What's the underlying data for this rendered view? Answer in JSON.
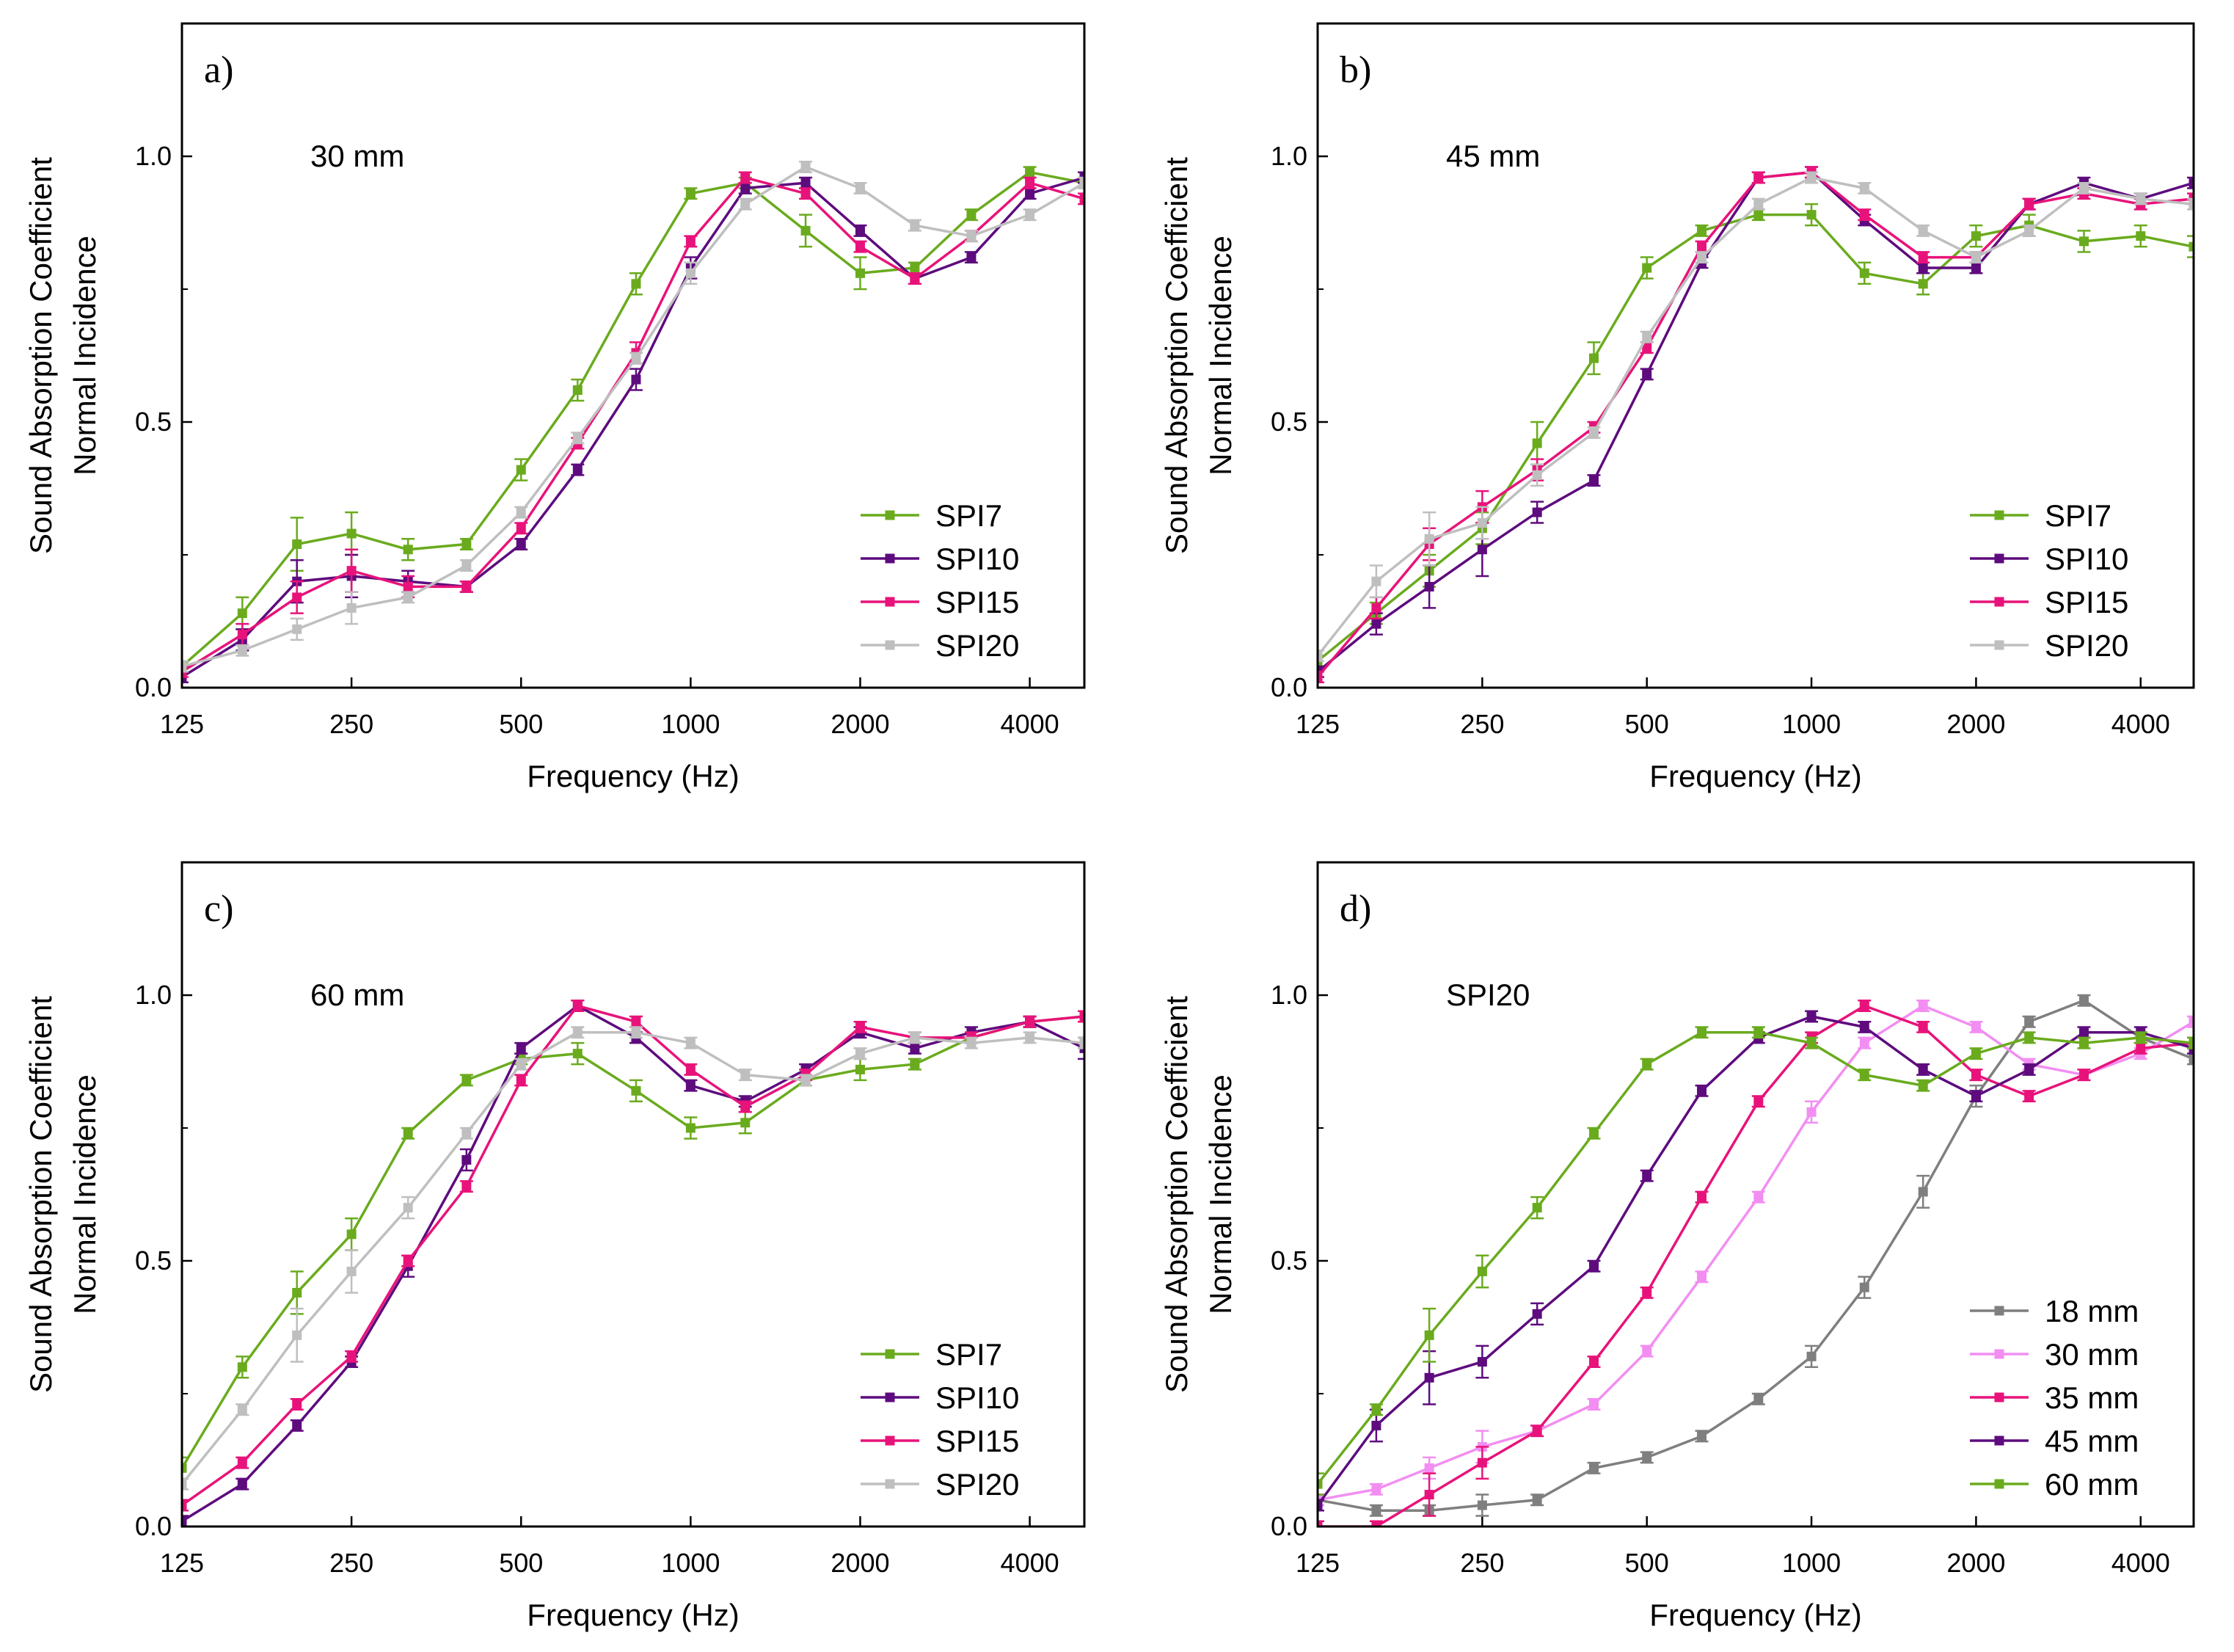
{
  "chart_data": [
    {
      "type": "line",
      "panel_label": "a)",
      "annotation": "30 mm",
      "xlabel": "Frequency (Hz)",
      "ylabel_line1": "Sound Absorption Coefficient",
      "ylabel_line2": "Normal Incidence",
      "xscale": "log2",
      "xlim": [
        125,
        5000
      ],
      "ylim": [
        0,
        1.25
      ],
      "xticks": [
        125,
        250,
        500,
        1000,
        2000,
        4000
      ],
      "xtick_labels": [
        "125",
        "250",
        "500",
        "1000",
        "2000",
        "4000"
      ],
      "yticks": [
        0,
        0.5,
        1.0
      ],
      "ytick_labels": [
        "0.0",
        "0.5",
        "1.0"
      ],
      "legend_position": "bottom-right",
      "x": [
        125,
        160,
        200,
        250,
        315,
        400,
        500,
        630,
        800,
        1000,
        1250,
        1600,
        2000,
        2500,
        3150,
        4000,
        5000
      ],
      "series": [
        {
          "name": "SPI7",
          "color": "#6aab1e",
          "values": [
            0.04,
            0.14,
            0.27,
            0.29,
            0.26,
            0.27,
            0.41,
            0.56,
            0.76,
            0.93,
            0.95,
            0.86,
            0.78,
            0.79,
            0.89,
            0.97,
            0.95
          ],
          "errors": [
            0.01,
            0.03,
            0.05,
            0.04,
            0.02,
            0.01,
            0.02,
            0.02,
            0.02,
            0.01,
            0.01,
            0.03,
            0.03,
            0.01,
            0.01,
            0.01,
            0.01
          ]
        },
        {
          "name": "SPI10",
          "color": "#5e0b7e",
          "values": [
            0.02,
            0.09,
            0.2,
            0.21,
            0.2,
            0.19,
            0.27,
            0.41,
            0.58,
            0.79,
            0.94,
            0.95,
            0.86,
            0.77,
            0.81,
            0.93,
            0.96
          ],
          "errors": [
            0.01,
            0.02,
            0.04,
            0.04,
            0.02,
            0.01,
            0.01,
            0.01,
            0.02,
            0.02,
            0.01,
            0.01,
            0.01,
            0.01,
            0.01,
            0.01,
            0.01
          ]
        },
        {
          "name": "SPI15",
          "color": "#e8137a",
          "values": [
            0.03,
            0.1,
            0.17,
            0.22,
            0.19,
            0.19,
            0.3,
            0.46,
            0.63,
            0.84,
            0.96,
            0.93,
            0.83,
            0.77,
            0.85,
            0.95,
            0.92
          ],
          "errors": [
            0.01,
            0.02,
            0.03,
            0.04,
            0.02,
            0.01,
            0.01,
            0.01,
            0.02,
            0.01,
            0.01,
            0.01,
            0.01,
            0.01,
            0.01,
            0.01,
            0.01
          ]
        },
        {
          "name": "SPI20",
          "color": "#bfbfbf",
          "values": [
            0.04,
            0.07,
            0.11,
            0.15,
            0.17,
            0.23,
            0.33,
            0.47,
            0.62,
            0.78,
            0.91,
            0.98,
            0.94,
            0.87,
            0.85,
            0.89,
            0.95
          ],
          "errors": [
            0.01,
            0.01,
            0.02,
            0.03,
            0.01,
            0.01,
            0.01,
            0.01,
            0.01,
            0.02,
            0.01,
            0.01,
            0.01,
            0.01,
            0.01,
            0.01,
            0.01
          ]
        }
      ]
    },
    {
      "type": "line",
      "panel_label": "b)",
      "annotation": "45 mm",
      "xlabel": "Frequency (Hz)",
      "ylabel_line1": "Sound Absorption Coefficient",
      "ylabel_line2": "Normal Incidence",
      "xscale": "log2",
      "xlim": [
        125,
        5000
      ],
      "ylim": [
        0,
        1.25
      ],
      "xticks": [
        125,
        250,
        500,
        1000,
        2000,
        4000
      ],
      "xtick_labels": [
        "125",
        "250",
        "500",
        "1000",
        "2000",
        "4000"
      ],
      "yticks": [
        0,
        0.5,
        1.0
      ],
      "ytick_labels": [
        "0.0",
        "0.5",
        "1.0"
      ],
      "legend_position": "bottom-right",
      "x": [
        125,
        160,
        200,
        250,
        315,
        400,
        500,
        630,
        800,
        1000,
        1250,
        1600,
        2000,
        2500,
        3150,
        4000,
        5000
      ],
      "series": [
        {
          "name": "SPI7",
          "color": "#6aab1e",
          "values": [
            0.05,
            0.14,
            0.22,
            0.3,
            0.46,
            0.62,
            0.79,
            0.86,
            0.89,
            0.89,
            0.78,
            0.76,
            0.85,
            0.87,
            0.84,
            0.85,
            0.83
          ],
          "errors": [
            0.01,
            0.02,
            0.03,
            0.03,
            0.04,
            0.03,
            0.02,
            0.01,
            0.01,
            0.02,
            0.02,
            0.02,
            0.02,
            0.02,
            0.02,
            0.02,
            0.02
          ]
        },
        {
          "name": "SPI10",
          "color": "#5e0b7e",
          "values": [
            0.03,
            0.12,
            0.19,
            0.26,
            0.33,
            0.39,
            0.59,
            0.8,
            0.96,
            0.97,
            0.88,
            0.79,
            0.79,
            0.91,
            0.95,
            0.92,
            0.95
          ],
          "errors": [
            0.01,
            0.02,
            0.04,
            0.05,
            0.02,
            0.01,
            0.01,
            0.01,
            0.01,
            0.01,
            0.01,
            0.01,
            0.01,
            0.01,
            0.01,
            0.01,
            0.01
          ]
        },
        {
          "name": "SPI15",
          "color": "#e8137a",
          "values": [
            0.02,
            0.15,
            0.27,
            0.34,
            0.41,
            0.49,
            0.64,
            0.83,
            0.96,
            0.97,
            0.89,
            0.81,
            0.81,
            0.91,
            0.93,
            0.91,
            0.92
          ],
          "errors": [
            0.01,
            0.02,
            0.03,
            0.03,
            0.02,
            0.01,
            0.01,
            0.01,
            0.01,
            0.01,
            0.01,
            0.01,
            0.01,
            0.01,
            0.01,
            0.01,
            0.01
          ]
        },
        {
          "name": "SPI20",
          "color": "#bfbfbf",
          "values": [
            0.06,
            0.2,
            0.28,
            0.31,
            0.4,
            0.48,
            0.66,
            0.81,
            0.91,
            0.96,
            0.94,
            0.86,
            0.81,
            0.86,
            0.94,
            0.92,
            0.91
          ],
          "errors": [
            0.01,
            0.03,
            0.05,
            0.03,
            0.02,
            0.01,
            0.01,
            0.01,
            0.01,
            0.01,
            0.01,
            0.01,
            0.01,
            0.01,
            0.01,
            0.01,
            0.01
          ]
        }
      ]
    },
    {
      "type": "line",
      "panel_label": "c)",
      "annotation": "60 mm",
      "xlabel": "Frequency (Hz)",
      "ylabel_line1": "Sound Absorption Coefficient",
      "ylabel_line2": "Normal Incidence",
      "xscale": "log2",
      "xlim": [
        125,
        5000
      ],
      "ylim": [
        0,
        1.25
      ],
      "xticks": [
        125,
        250,
        500,
        1000,
        2000,
        4000
      ],
      "xtick_labels": [
        "125",
        "250",
        "500",
        "1000",
        "2000",
        "4000"
      ],
      "yticks": [
        0,
        0.5,
        1.0
      ],
      "ytick_labels": [
        "0.0",
        "0.5",
        "1.0"
      ],
      "legend_position": "bottom-right",
      "x": [
        125,
        160,
        200,
        250,
        315,
        400,
        500,
        630,
        800,
        1000,
        1250,
        1600,
        2000,
        2500,
        3150,
        4000,
        5000
      ],
      "series": [
        {
          "name": "SPI7",
          "color": "#6aab1e",
          "values": [
            0.11,
            0.3,
            0.44,
            0.55,
            0.74,
            0.84,
            0.88,
            0.89,
            0.82,
            0.75,
            0.76,
            0.84,
            0.86,
            0.87,
            0.92,
            0.95,
            0.96
          ],
          "errors": [
            0.02,
            0.02,
            0.04,
            0.03,
            0.01,
            0.01,
            0.01,
            0.02,
            0.02,
            0.02,
            0.02,
            0.01,
            0.02,
            0.01,
            0.01,
            0.01,
            0.01
          ]
        },
        {
          "name": "SPI10",
          "color": "#5e0b7e",
          "values": [
            0.01,
            0.08,
            0.19,
            0.31,
            0.49,
            0.69,
            0.9,
            0.98,
            0.92,
            0.83,
            0.8,
            0.86,
            0.93,
            0.9,
            0.93,
            0.95,
            0.9
          ],
          "errors": [
            0.01,
            0.01,
            0.01,
            0.01,
            0.02,
            0.02,
            0.01,
            0.01,
            0.01,
            0.01,
            0.01,
            0.01,
            0.01,
            0.01,
            0.01,
            0.01,
            0.02
          ]
        },
        {
          "name": "SPI15",
          "color": "#e8137a",
          "values": [
            0.04,
            0.12,
            0.23,
            0.32,
            0.5,
            0.64,
            0.84,
            0.98,
            0.95,
            0.86,
            0.79,
            0.85,
            0.94,
            0.92,
            0.92,
            0.95,
            0.96
          ],
          "errors": [
            0.01,
            0.01,
            0.01,
            0.01,
            0.01,
            0.01,
            0.01,
            0.01,
            0.01,
            0.01,
            0.01,
            0.01,
            0.01,
            0.01,
            0.01,
            0.01,
            0.01
          ]
        },
        {
          "name": "SPI20",
          "color": "#bfbfbf",
          "values": [
            0.08,
            0.22,
            0.36,
            0.48,
            0.6,
            0.74,
            0.87,
            0.93,
            0.93,
            0.91,
            0.85,
            0.84,
            0.89,
            0.92,
            0.91,
            0.92,
            0.91
          ],
          "errors": [
            0.01,
            0.01,
            0.05,
            0.04,
            0.02,
            0.01,
            0.01,
            0.01,
            0.01,
            0.01,
            0.01,
            0.01,
            0.01,
            0.01,
            0.01,
            0.01,
            0.01
          ]
        }
      ]
    },
    {
      "type": "line",
      "panel_label": "d)",
      "annotation": "SPI20",
      "xlabel": "Frequency (Hz)",
      "ylabel_line1": "Sound Absorption Coefficient",
      "ylabel_line2": "Normal Incidence",
      "xscale": "log2",
      "xlim": [
        125,
        5000
      ],
      "ylim": [
        0,
        1.25
      ],
      "xticks": [
        125,
        250,
        500,
        1000,
        2000,
        4000
      ],
      "xtick_labels": [
        "125",
        "250",
        "500",
        "1000",
        "2000",
        "4000"
      ],
      "yticks": [
        0,
        0.5,
        1.0
      ],
      "ytick_labels": [
        "0.0",
        "0.5",
        "1.0"
      ],
      "legend_position": "bottom-right",
      "x": [
        125,
        160,
        200,
        250,
        315,
        400,
        500,
        630,
        800,
        1000,
        1250,
        1600,
        2000,
        2500,
        3150,
        4000,
        5000
      ],
      "series": [
        {
          "name": "18 mm",
          "color": "#7f7f7f",
          "values": [
            0.05,
            0.03,
            0.03,
            0.04,
            0.05,
            0.11,
            0.13,
            0.17,
            0.24,
            0.32,
            0.45,
            0.63,
            0.81,
            0.95,
            0.99,
            0.92,
            0.88
          ],
          "errors": [
            0.01,
            0.01,
            0.01,
            0.02,
            0.01,
            0.01,
            0.01,
            0.01,
            0.01,
            0.02,
            0.02,
            0.03,
            0.02,
            0.01,
            0.01,
            0.01,
            0.01
          ]
        },
        {
          "name": "30 mm",
          "color": "#f28ef2",
          "values": [
            0.05,
            0.07,
            0.11,
            0.15,
            0.18,
            0.23,
            0.33,
            0.47,
            0.62,
            0.78,
            0.91,
            0.98,
            0.94,
            0.87,
            0.85,
            0.89,
            0.95
          ],
          "errors": [
            0.01,
            0.01,
            0.02,
            0.03,
            0.01,
            0.01,
            0.01,
            0.01,
            0.01,
            0.02,
            0.01,
            0.01,
            0.01,
            0.01,
            0.01,
            0.01,
            0.01
          ]
        },
        {
          "name": "35 mm",
          "color": "#e8137a",
          "values": [
            0.0,
            0.0,
            0.06,
            0.12,
            0.18,
            0.31,
            0.44,
            0.62,
            0.8,
            0.92,
            0.98,
            0.94,
            0.85,
            0.81,
            0.85,
            0.9,
            0.91
          ],
          "errors": [
            0.01,
            0.01,
            0.04,
            0.03,
            0.01,
            0.01,
            0.01,
            0.01,
            0.01,
            0.01,
            0.01,
            0.01,
            0.01,
            0.01,
            0.01,
            0.01,
            0.01
          ]
        },
        {
          "name": "45 mm",
          "color": "#5e0b7e",
          "values": [
            0.04,
            0.19,
            0.28,
            0.31,
            0.4,
            0.49,
            0.66,
            0.82,
            0.92,
            0.96,
            0.94,
            0.86,
            0.81,
            0.86,
            0.93,
            0.93,
            0.9
          ],
          "errors": [
            0.01,
            0.03,
            0.05,
            0.03,
            0.02,
            0.01,
            0.01,
            0.01,
            0.01,
            0.01,
            0.01,
            0.01,
            0.01,
            0.01,
            0.01,
            0.01,
            0.01
          ]
        },
        {
          "name": "60 mm",
          "color": "#6aab1e",
          "values": [
            0.08,
            0.22,
            0.36,
            0.48,
            0.6,
            0.74,
            0.87,
            0.93,
            0.93,
            0.91,
            0.85,
            0.83,
            0.89,
            0.92,
            0.91,
            0.92,
            0.91
          ],
          "errors": [
            0.02,
            0.01,
            0.05,
            0.03,
            0.02,
            0.01,
            0.01,
            0.01,
            0.01,
            0.01,
            0.01,
            0.01,
            0.01,
            0.01,
            0.01,
            0.01,
            0.01
          ]
        }
      ]
    }
  ]
}
